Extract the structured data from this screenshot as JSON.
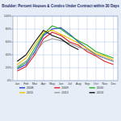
{
  "chart_data": {
    "type": "line",
    "title": "Boulder: Percent Houses & Condos Under Contract within 30 Days",
    "categories": [
      "Jan",
      "Feb",
      "Mar",
      "Apr",
      "May",
      "Jun",
      "Jul",
      "Aug",
      "Sep",
      "Oct",
      "Nov",
      "Dec"
    ],
    "series": [
      {
        "name": "2008",
        "color": "#1f3fd8",
        "values": [
          18,
          25,
          45,
          70,
          80,
          82,
          72,
          60,
          50,
          40,
          35,
          30
        ]
      },
      {
        "name": "2009",
        "color": "#e02020",
        "values": [
          15,
          22,
          40,
          65,
          75,
          70,
          60,
          55,
          45,
          38,
          30,
          25
        ]
      },
      {
        "name": "2010",
        "color": "#22b022",
        "values": [
          20,
          28,
          50,
          72,
          85,
          80,
          70,
          62,
          55,
          45,
          40,
          35
        ]
      },
      {
        "name": "2011",
        "color": "#f2c200",
        "values": [
          25,
          35,
          55,
          75,
          78,
          72,
          65,
          58,
          50,
          42,
          38,
          32
        ]
      },
      {
        "name": "2012",
        "color": "#9a9a9a",
        "values": [
          22,
          30,
          42,
          60,
          65,
          62,
          58,
          52,
          48,
          40,
          35,
          30
        ]
      },
      {
        "name": "2013",
        "color": "#111111",
        "values": [
          30,
          40,
          60,
          78,
          70,
          65,
          55,
          48,
          null,
          null,
          null,
          null
        ]
      }
    ],
    "ylim": [
      0,
      100
    ],
    "yticks": [
      {
        "value": 0,
        "label": "0%"
      },
      {
        "value": 20,
        "label": "20%"
      },
      {
        "value": 40,
        "label": "40%"
      },
      {
        "value": 60,
        "label": "60%"
      },
      {
        "value": 80,
        "label": "80%"
      },
      {
        "value": 100,
        "label": "100%"
      }
    ],
    "grid": true,
    "legend": "bottom"
  }
}
